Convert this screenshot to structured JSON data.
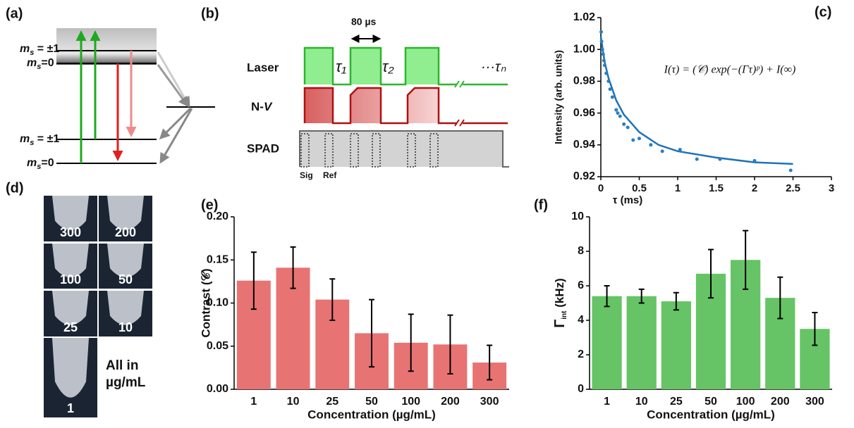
{
  "panel_a": {
    "panel_label": "(a)",
    "levels": [
      {
        "symbol": "m",
        "subscript": "s",
        "value": " = ±1"
      },
      {
        "symbol": "m",
        "subscript": "s",
        "value": "=0"
      },
      {
        "symbol": "m",
        "subscript": "s",
        "value": " = ±1"
      },
      {
        "symbol": "m",
        "subscript": "s",
        "value": "=0"
      }
    ]
  },
  "panel_b": {
    "panel_label": "(b)",
    "period": "80 µs",
    "rows": [
      "Laser",
      "N-",
      "V",
      "SPAD"
    ],
    "taus": [
      "τ₁",
      "τ₂",
      "···τₙ"
    ],
    "gates": [
      "Sig",
      "Ref"
    ]
  },
  "panel_d": {
    "panel_label": "(d)",
    "tubes": [
      "300",
      "200",
      "100",
      "50",
      "25",
      "10",
      "1"
    ],
    "note": [
      "All in",
      "µg/mL"
    ]
  },
  "chart_data": [
    {
      "type": "scatter",
      "panel_label": "(c)",
      "annotation": "I(τ) = (𝒞) exp(−(Γτ)ᵖ) + I(∞)",
      "x_label": "τ (ms)",
      "y_label": "Intensity (arb. units)",
      "x": [
        0.005,
        0.01,
        0.02,
        0.03,
        0.04,
        0.05,
        0.07,
        0.1,
        0.12,
        0.15,
        0.2,
        0.22,
        0.25,
        0.3,
        0.35,
        0.42,
        0.5,
        0.65,
        0.8,
        1.03,
        1.25,
        1.55,
        2.0,
        2.47
      ],
      "values": [
        1.011,
        1.005,
        1.0,
        0.997,
        0.993,
        0.99,
        0.985,
        0.98,
        0.975,
        0.97,
        0.962,
        0.96,
        0.958,
        0.953,
        0.951,
        0.943,
        0.944,
        0.94,
        0.936,
        0.937,
        0.931,
        0.931,
        0.93,
        0.924
      ],
      "color": "#2a7fc0",
      "fit": {
        "x": [
          0,
          0.05,
          0.1,
          0.2,
          0.3,
          0.5,
          0.75,
          1,
          1.5,
          2,
          2.5
        ],
        "values": [
          1.008,
          0.992,
          0.982,
          0.968,
          0.959,
          0.948,
          0.94,
          0.936,
          0.932,
          0.929,
          0.928
        ],
        "color": "#1f72b8"
      },
      "xlim": [
        0,
        3
      ],
      "xticks": [
        0,
        0.5,
        1,
        1.5,
        2,
        2.5,
        3
      ],
      "ylim": [
        0.92,
        1.02
      ],
      "yticks": [
        0.92,
        0.94,
        0.96,
        0.98,
        {
          "value": 1,
          "label": "1.00"
        },
        1.02
      ]
    },
    {
      "type": "bar",
      "panel_label": "(e)",
      "x_label": "Concentration (µg/mL)",
      "y_label": "Contrast (𝒞)",
      "categories": [
        "1",
        "10",
        "25",
        "50",
        "100",
        "200",
        "300"
      ],
      "values": [
        0.126,
        0.141,
        0.104,
        0.065,
        0.054,
        0.052,
        0.031
      ],
      "errors": [
        0.033,
        0.024,
        0.024,
        0.039,
        0.033,
        0.034,
        0.02
      ],
      "color": "#e87373",
      "ylim": [
        0,
        0.2
      ],
      "yticks": [
        {
          "value": 0,
          "label": "0.00"
        },
        {
          "value": 0.05,
          "label": "0.05"
        },
        {
          "value": 0.1,
          "label": "0.10"
        },
        {
          "value": 0.15,
          "label": "0.15"
        },
        {
          "value": 0.2,
          "label": "0.20"
        }
      ]
    },
    {
      "type": "bar",
      "panel_label": "(f)",
      "x_label": "Concentration (µg/mL)",
      "y_label": {
        "symbol": "Γ",
        "subscript": "int",
        "rest": " (kHz)"
      },
      "categories": [
        "1",
        "10",
        "25",
        "50",
        "100",
        "200",
        "300"
      ],
      "values": [
        5.4,
        5.4,
        5.1,
        6.7,
        7.5,
        5.3,
        3.5
      ],
      "errors": [
        0.6,
        0.4,
        0.5,
        1.4,
        1.7,
        1.2,
        0.95
      ],
      "color": "#66c466",
      "ylim": [
        0,
        10
      ],
      "yticks": [
        0,
        2,
        4,
        6,
        8,
        10
      ]
    }
  ]
}
